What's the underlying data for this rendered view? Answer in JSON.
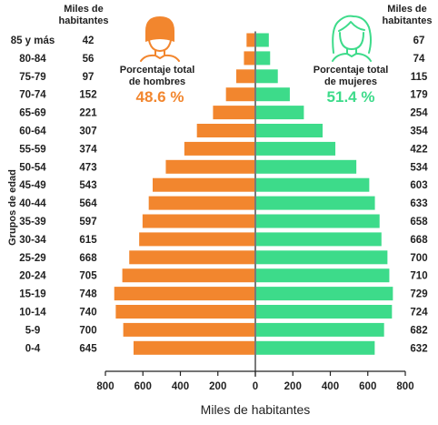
{
  "colors": {
    "men": "#F2862E",
    "women": "#3DDB8A",
    "axis": "#222222"
  },
  "headers": {
    "left": [
      "Miles de",
      "habitantes"
    ],
    "right": [
      "Miles de",
      "habitantes"
    ]
  },
  "men_summary": {
    "title": [
      "Porcentaje total",
      "de hombres"
    ],
    "value": "48.6 %",
    "icon": "man-icon"
  },
  "women_summary": {
    "title": [
      "Porcentaje total",
      "de mujeres"
    ],
    "value": "51.4 %",
    "icon": "woman-icon"
  },
  "chart_data": {
    "type": "bar",
    "orientation": "horizontal-pyramid",
    "xlabel": "Miles de habitantes",
    "ylabel": "Grupos de edad",
    "xlim": [
      -800,
      800
    ],
    "x_ticks": [
      "800",
      "600",
      "400",
      "200",
      "0",
      "200",
      "400",
      "600",
      "800"
    ],
    "grid": false,
    "categories": [
      "85 y más",
      "80-84",
      "75-79",
      "70-74",
      "65-69",
      "60-64",
      "55-59",
      "50-54",
      "45-49",
      "40-44",
      "35-39",
      "30-34",
      "25-29",
      "20-24",
      "15-19",
      "10-14",
      "5-9",
      "0-4"
    ],
    "series": [
      {
        "side": "left",
        "color": "#F2862E",
        "values": [
          42,
          56,
          97,
          152,
          221,
          307,
          374,
          473,
          543,
          564,
          597,
          615,
          668,
          705,
          748,
          740,
          700,
          645
        ]
      },
      {
        "side": "right",
        "color": "#3DDB8A",
        "values": [
          67,
          74,
          115,
          179,
          254,
          354,
          422,
          534,
          603,
          633,
          658,
          668,
          700,
          710,
          729,
          724,
          682,
          632
        ]
      }
    ]
  }
}
